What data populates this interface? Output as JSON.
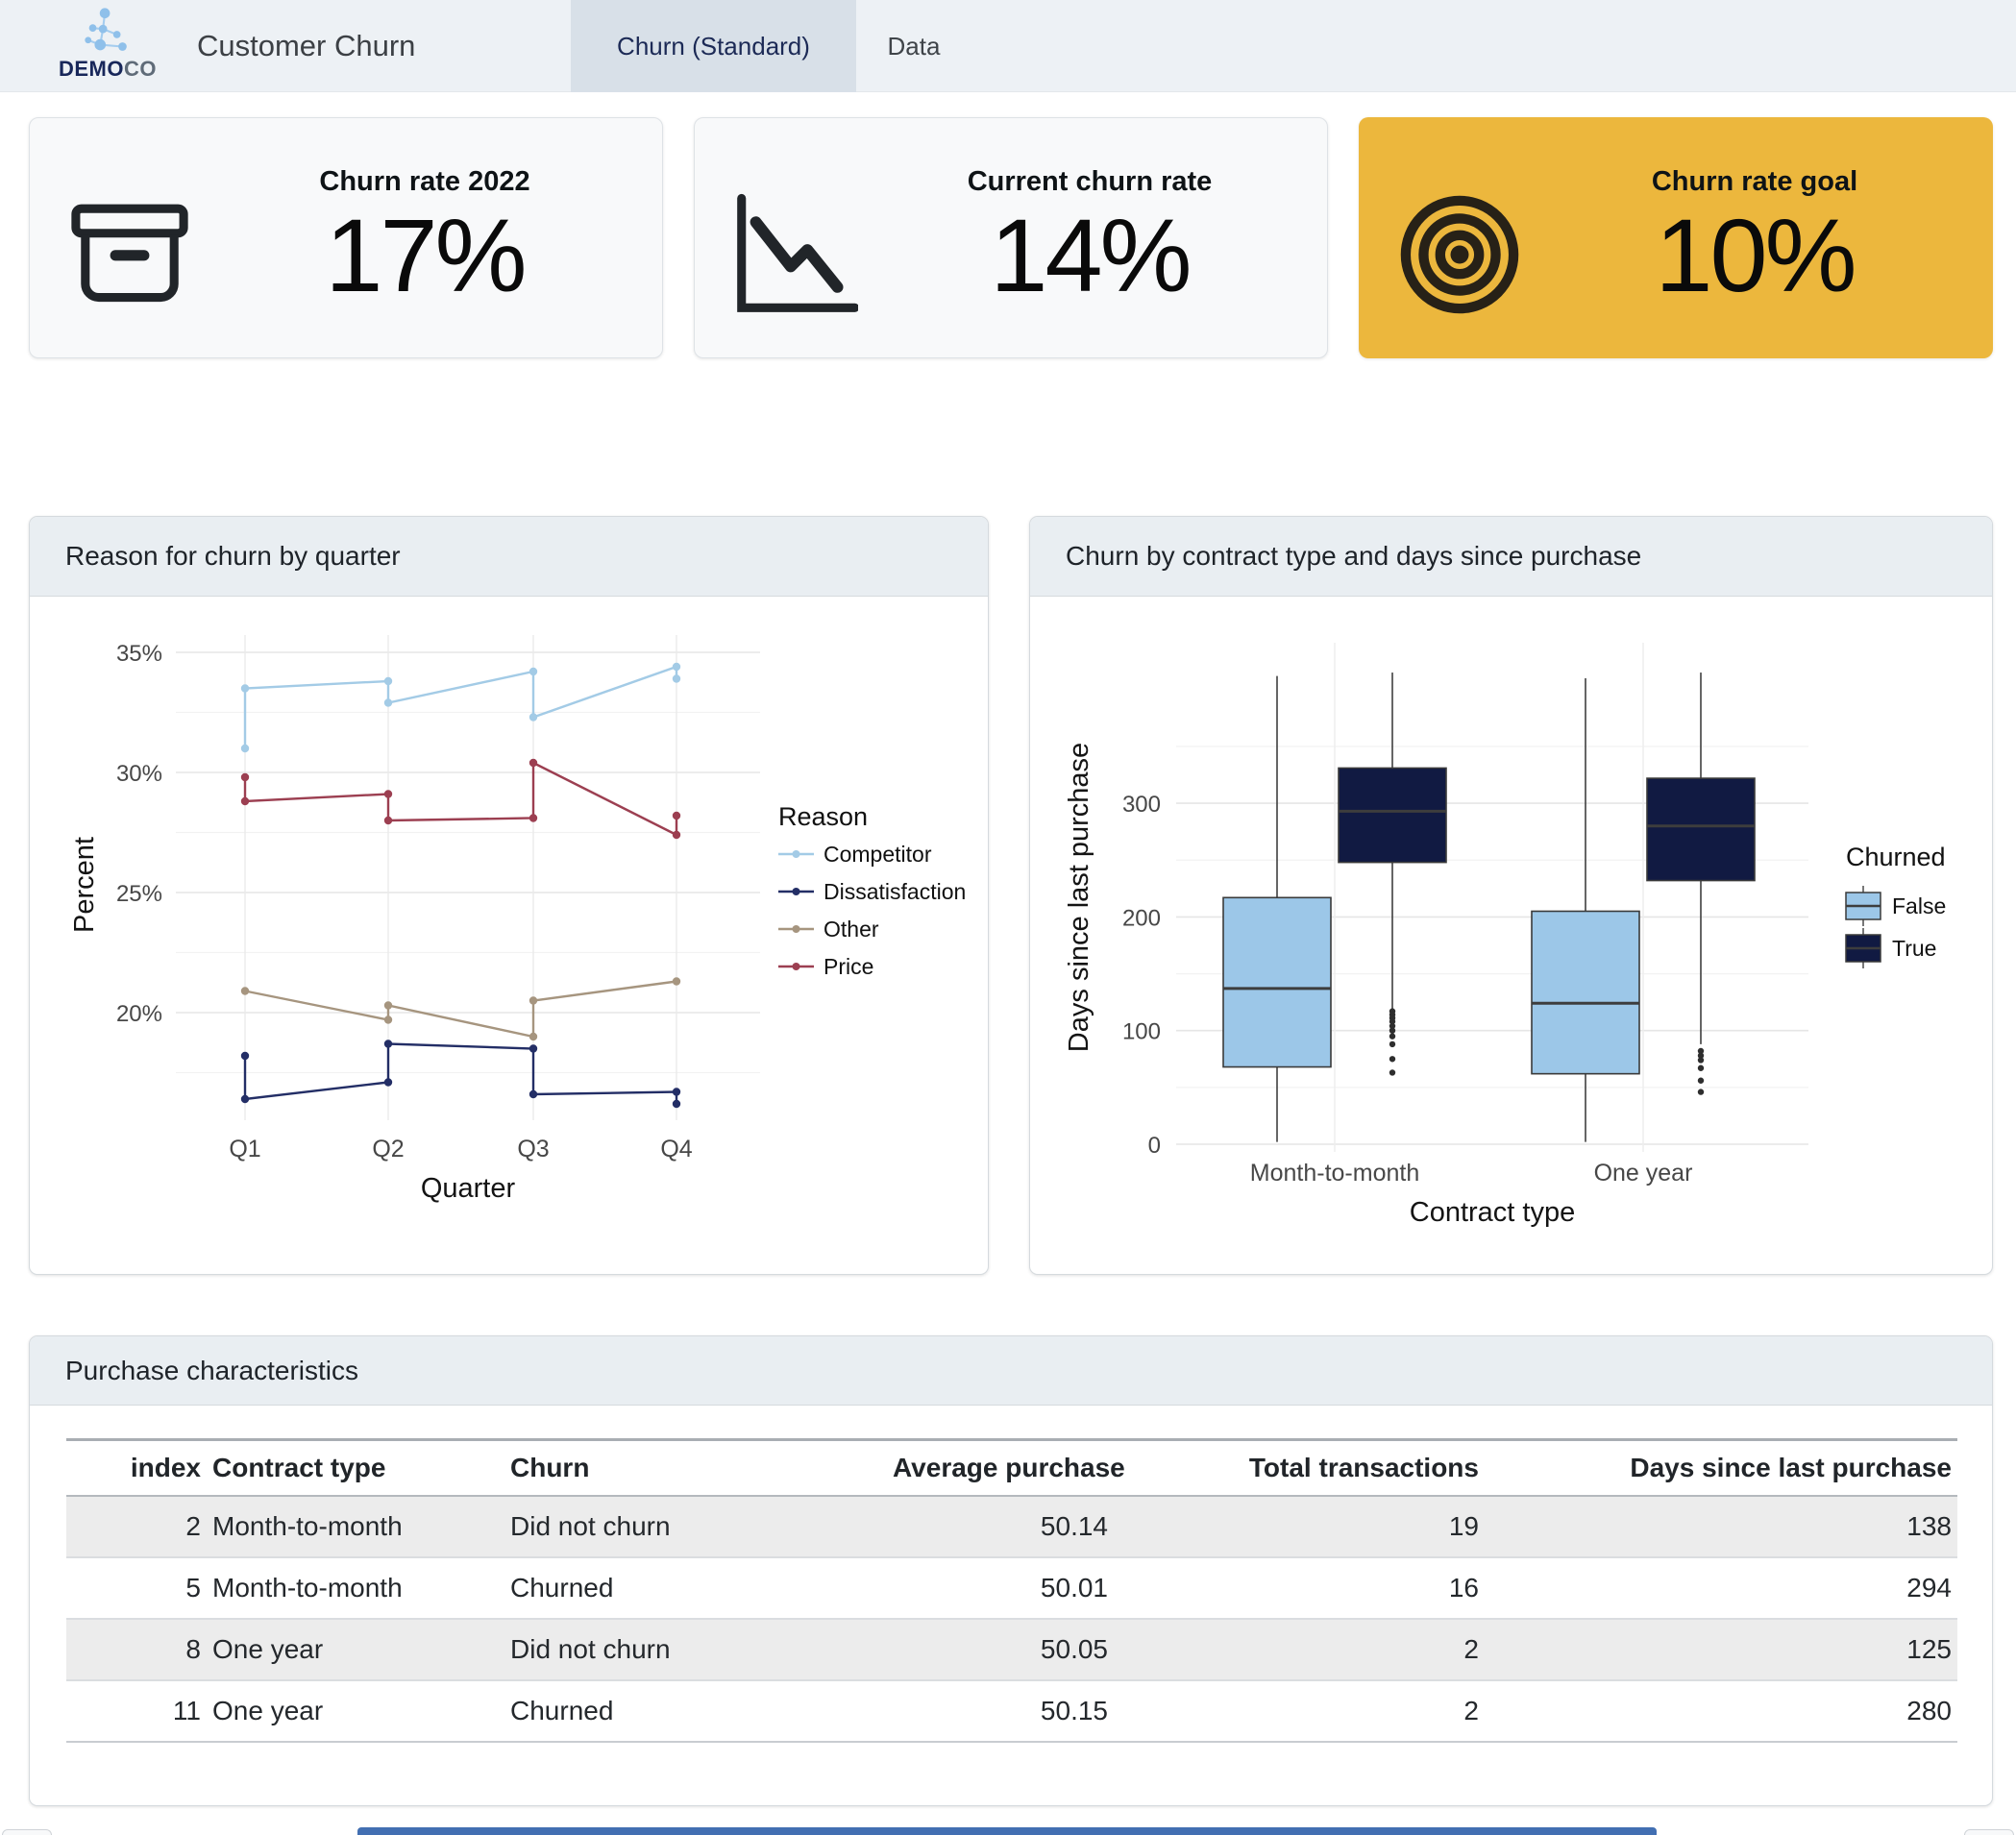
{
  "navbar": {
    "logo": {
      "bold": "DEMO",
      "light": "CO"
    },
    "title": "Customer Churn",
    "tabs": [
      {
        "label": "Churn (Standard)",
        "active": true
      },
      {
        "label": "Data",
        "active": false
      }
    ]
  },
  "value_boxes": [
    {
      "title": "Churn rate 2022",
      "value": "17%",
      "icon": "archive-icon"
    },
    {
      "title": "Current churn rate",
      "value": "14%",
      "icon": "graph-down-icon"
    },
    {
      "title": "Churn rate goal",
      "value": "10%",
      "icon": "bullseye-icon"
    }
  ],
  "colors": {
    "goal_box_bg": "#ecb73d",
    "accent_bar": "#426fb2",
    "series": {
      "Competitor": "#a3cbe6",
      "Dissatisfaction": "#232e66",
      "Other": "#a6957f",
      "Price": "#9c3f51"
    },
    "churned": {
      "False": "#9cc7e8",
      "True": "#111a42"
    }
  },
  "cards": {
    "line": {
      "title": "Reason for churn by quarter"
    },
    "box": {
      "title": "Churn by contract type and days since purchase"
    },
    "table": {
      "title": "Purchase characteristics"
    }
  },
  "chart_data": [
    {
      "type": "line",
      "title": "Reason for churn by quarter",
      "xlabel": "Quarter",
      "ylabel": "Percent",
      "categories": [
        "Q1",
        "Q2",
        "Q3",
        "Q4"
      ],
      "y_ticks": [
        20,
        25,
        30,
        35
      ],
      "y_minor_ticks": [
        17.5,
        22.5,
        27.5,
        32.5
      ],
      "y_tick_suffix": "%",
      "ylim": [
        15.5,
        35.5
      ],
      "grid": true,
      "legend_title": "Reason",
      "legend_position": "right",
      "series": [
        {
          "name": "Competitor",
          "points": [
            [
              0,
              31.0
            ],
            [
              0,
              33.5
            ],
            [
              1,
              33.8
            ],
            [
              1,
              32.9
            ],
            [
              2,
              34.2
            ],
            [
              2,
              32.3
            ],
            [
              3,
              34.4
            ],
            [
              3,
              33.9
            ]
          ]
        },
        {
          "name": "Dissatisfaction",
          "points": [
            [
              0,
              18.2
            ],
            [
              0,
              16.4
            ],
            [
              1,
              17.1
            ],
            [
              1,
              18.7
            ],
            [
              2,
              18.5
            ],
            [
              2,
              16.6
            ],
            [
              3,
              16.7
            ],
            [
              3,
              16.2
            ]
          ]
        },
        {
          "name": "Other",
          "points": [
            [
              0,
              20.9
            ],
            [
              1,
              19.7
            ],
            [
              1,
              20.3
            ],
            [
              2,
              19.0
            ],
            [
              2,
              20.5
            ],
            [
              3,
              21.3
            ]
          ]
        },
        {
          "name": "Price",
          "points": [
            [
              0,
              29.8
            ],
            [
              0,
              28.8
            ],
            [
              1,
              29.1
            ],
            [
              1,
              28.0
            ],
            [
              2,
              28.1
            ],
            [
              2,
              30.4
            ],
            [
              3,
              27.4
            ],
            [
              3,
              28.2
            ]
          ]
        }
      ]
    },
    {
      "type": "boxplot",
      "title": "Churn by contract type and days since purchase",
      "xlabel": "Contract type",
      "ylabel": "Days since last purchase",
      "y_ticks": [
        0,
        100,
        200,
        300
      ],
      "y_minor_ticks": [
        50,
        150,
        250,
        350
      ],
      "grid": true,
      "legend_title": "Churned",
      "legend_position": "right",
      "groups": [
        {
          "label": "Month-to-month",
          "boxes": [
            {
              "name": "False",
              "low": 2,
              "q1": 68,
              "median": 137,
              "q3": 217,
              "high": 412,
              "outliers": []
            },
            {
              "name": "True",
              "low": 118,
              "q1": 248,
              "median": 293,
              "q3": 331,
              "high": 415,
              "outliers": [
                63,
                75,
                88,
                95,
                100,
                104,
                108,
                111,
                114,
                117
              ]
            }
          ]
        },
        {
          "label": "One year",
          "boxes": [
            {
              "name": "False",
              "low": 2,
              "q1": 62,
              "median": 124,
              "q3": 205,
              "high": 410,
              "outliers": []
            },
            {
              "name": "True",
              "low": 88,
              "q1": 232,
              "median": 280,
              "q3": 322,
              "high": 415,
              "outliers": [
                46,
                56,
                67,
                74,
                78,
                82
              ]
            }
          ]
        }
      ]
    }
  ],
  "table": {
    "headers": [
      "index",
      "Contract type",
      "Churn",
      "Average purchase",
      "Total transactions",
      "Days since last purchase"
    ],
    "align": [
      "right",
      "left",
      "left",
      "right",
      "right",
      "right"
    ],
    "rows": [
      [
        "2",
        "Month-to-month",
        "Did not churn",
        "50.14",
        "19",
        "138"
      ],
      [
        "5",
        "Month-to-month",
        "Churned",
        "50.01",
        "16",
        "294"
      ],
      [
        "8",
        "One year",
        "Did not churn",
        "50.05",
        "2",
        "125"
      ],
      [
        "11",
        "One year",
        "Churned",
        "50.15",
        "2",
        "280"
      ]
    ]
  }
}
